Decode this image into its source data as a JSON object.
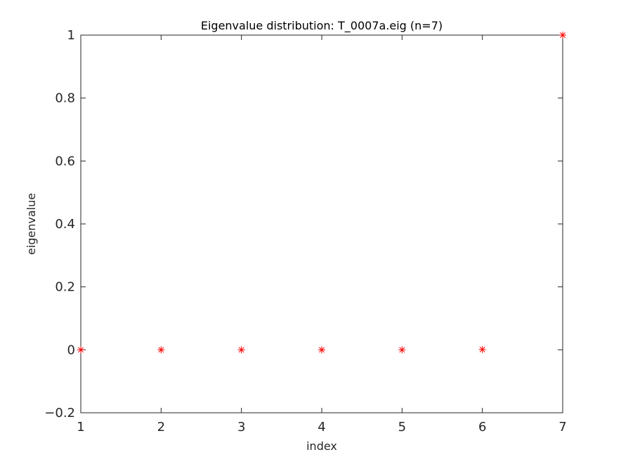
{
  "chart_data": {
    "type": "scatter",
    "title": "Eigenvalue distribution: T_0007a.eig (n=7)",
    "xlabel": "index",
    "ylabel": "eigenvalue",
    "xlim": [
      1,
      7
    ],
    "ylim": [
      -0.2,
      1
    ],
    "xticks": [
      1,
      2,
      3,
      4,
      5,
      6,
      7
    ],
    "xtick_labels": [
      "1",
      "2",
      "3",
      "4",
      "5",
      "6",
      "7"
    ],
    "yticks": [
      -0.2,
      0,
      0.2,
      0.4,
      0.6,
      0.8,
      1
    ],
    "ytick_labels": [
      "−0.2",
      "0",
      "0.2",
      "0.4",
      "0.6",
      "0.8",
      "1"
    ],
    "grid": false,
    "marker": "asterisk",
    "marker_color": "#ff0000",
    "x": [
      1,
      2,
      3,
      4,
      5,
      6,
      7
    ],
    "y": [
      0,
      0,
      0,
      0,
      0,
      0.001,
      1
    ]
  }
}
